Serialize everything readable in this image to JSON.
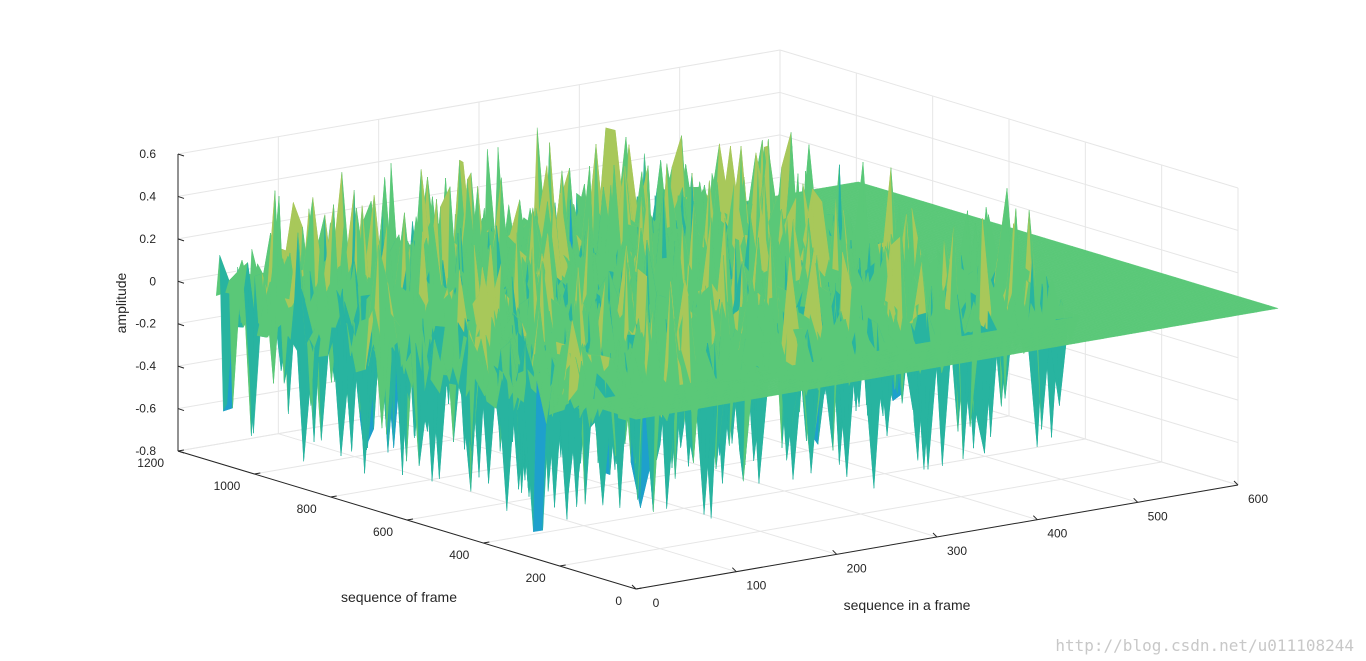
{
  "chart_data": {
    "type": "surface",
    "xlabel": "sequence in a frame",
    "ylabel": "sequence of frame",
    "zlabel": "amplitude",
    "xlim": [
      0,
      600
    ],
    "ylim": [
      0,
      1200
    ],
    "zlim": [
      -0.8,
      0.6
    ],
    "x_ticks": [
      0,
      100,
      200,
      300,
      400,
      500,
      600
    ],
    "y_ticks": [
      0,
      200,
      400,
      600,
      800,
      1000,
      1200
    ],
    "z_ticks": [
      -0.8,
      -0.6,
      -0.4,
      -0.2,
      0,
      0.2,
      0.4,
      0.6
    ],
    "x_tick_labels": [
      "0",
      "100",
      "200",
      "300",
      "400",
      "500",
      "600"
    ],
    "y_tick_labels": [
      "0",
      "200",
      "400",
      "600",
      "800",
      "1000",
      "1200"
    ],
    "z_tick_labels": [
      "-0.8",
      "-0.6",
      "-0.4",
      "-0.2",
      "0",
      "0.2",
      "0.4",
      "0.6"
    ],
    "data_extent": {
      "x": [
        0,
        640
      ],
      "y": [
        0,
        1100
      ]
    },
    "amplitude_range": [
      -0.72,
      0.55
    ],
    "zero_bands": {
      "x_from": 500,
      "y_to": 150
    },
    "colormap": [
      "#0e6ee6",
      "#1ea0cc",
      "#28b4a0",
      "#5ac878",
      "#a8c85a",
      "#e8c23a"
    ],
    "grid": true
  },
  "watermark": "http://blog.csdn.net/u011108244"
}
